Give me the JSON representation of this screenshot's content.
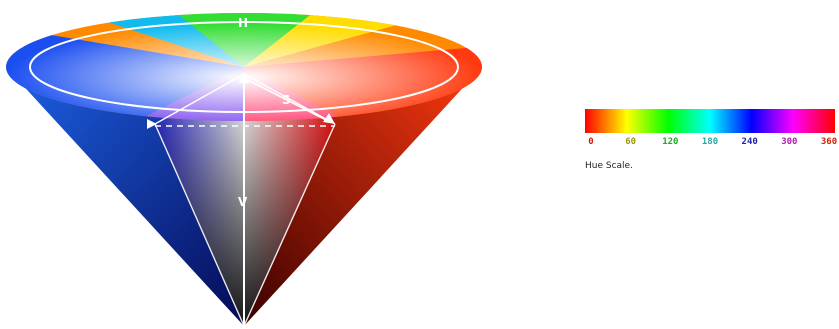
{
  "cone": {
    "labels": {
      "hue": "H",
      "saturation": "S",
      "value": "V"
    }
  },
  "hue_scale": {
    "caption": "Hue Scale.",
    "ticks": [
      {
        "label": "0",
        "color": "#cc2200"
      },
      {
        "label": "60",
        "color": "#999900"
      },
      {
        "label": "120",
        "color": "#22aa22"
      },
      {
        "label": "180",
        "color": "#22aaaa"
      },
      {
        "label": "240",
        "color": "#2222aa"
      },
      {
        "label": "300",
        "color": "#aa22aa"
      },
      {
        "label": "360",
        "color": "#cc2200"
      }
    ]
  }
}
